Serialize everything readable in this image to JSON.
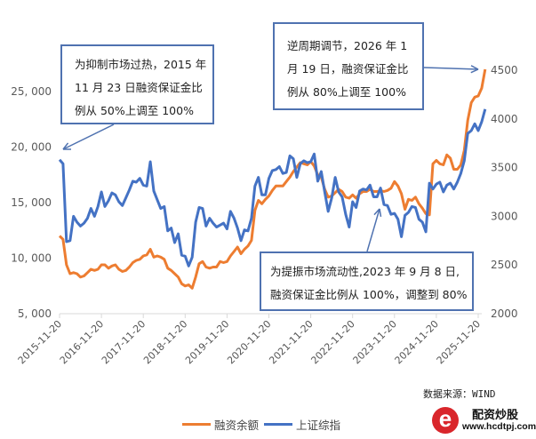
{
  "chart_data": {
    "type": "line",
    "title": "",
    "xlabel": "",
    "x_tick_labels": [
      "2015-11-20",
      "2016-11-20",
      "2017-11-20",
      "2018-11-20",
      "2019-11-20",
      "2020-11-20",
      "2021-11-20",
      "2022-11-20",
      "2023-11-20",
      "2024-11-20",
      "2025-11-20"
    ],
    "left_axis": {
      "ticks": [
        5000,
        10000,
        15000,
        20000,
        25000
      ],
      "tick_labels": [
        "5, 000",
        "10, 000",
        "15, 000",
        "20, 000",
        "25, 000"
      ],
      "range": [
        5000,
        25000
      ]
    },
    "right_axis": {
      "ticks": [
        2000,
        2500,
        3000,
        3500,
        4000,
        4500
      ],
      "tick_labels": [
        "2000",
        "2500",
        "3000",
        "3500",
        "4000",
        "4500"
      ],
      "range": [
        2000,
        4500
      ]
    },
    "grid": false,
    "legend_position": "bottom",
    "x_start": "2015-11",
    "series": [
      {
        "name": "融资余额",
        "axis": "left",
        "color": "#ed7d31",
        "values": [
          12000,
          11700,
          9400,
          8600,
          8700,
          8600,
          8300,
          8400,
          8700,
          9000,
          8900,
          9000,
          9400,
          9400,
          9100,
          9300,
          9400,
          9000,
          8800,
          8900,
          9200,
          9600,
          9800,
          9900,
          10200,
          10300,
          10800,
          10100,
          10200,
          10100,
          9900,
          9100,
          8900,
          8600,
          8300,
          7700,
          7500,
          7600,
          7300,
          8300,
          9500,
          9700,
          9200,
          9100,
          9200,
          9200,
          9700,
          9600,
          9700,
          10200,
          10600,
          11000,
          10400,
          10800,
          11100,
          11600,
          14300,
          15200,
          14900,
          15300,
          15600,
          16100,
          16500,
          16500,
          16500,
          16900,
          17300,
          17800,
          18200,
          18600,
          18500,
          18400,
          18700,
          18300,
          17500,
          17300,
          16200,
          15500,
          15600,
          15900,
          16200,
          16000,
          15500,
          15400,
          15700,
          15400,
          15800,
          16000,
          16000,
          16200,
          16000,
          16000,
          16100,
          16000,
          16100,
          16300,
          16900,
          16500,
          15800,
          14400,
          15300,
          15200,
          15500,
          14900,
          14500,
          14000,
          13900,
          18500,
          18800,
          18500,
          18400,
          19300,
          19000,
          18000,
          18000,
          18400,
          19700,
          22400,
          24000,
          24500,
          24600,
          25300,
          27000
        ]
      },
      {
        "name": "上证综指",
        "axis": "right",
        "color": "#4472c4",
        "values": [
          3580,
          3540,
          2740,
          2750,
          3000,
          2940,
          2900,
          2930,
          2980,
          3080,
          3000,
          3100,
          3250,
          3100,
          3160,
          3240,
          3220,
          3150,
          3110,
          3190,
          3270,
          3360,
          3350,
          3390,
          3320,
          3310,
          3560,
          3260,
          3170,
          3080,
          3100,
          2850,
          2880,
          2730,
          2820,
          2600,
          2590,
          2490,
          2580,
          2940,
          3090,
          3080,
          2900,
          2980,
          2930,
          2890,
          2910,
          2930,
          2870,
          3050,
          2980,
          2880,
          2750,
          2860,
          2850,
          2980,
          3310,
          3400,
          3220,
          3220,
          3390,
          3470,
          3480,
          3510,
          3440,
          3450,
          3620,
          3590,
          3400,
          3540,
          3570,
          3550,
          3560,
          3640,
          3360,
          3460,
          3250,
          3050,
          3190,
          3400,
          3250,
          3200,
          3020,
          2890,
          3150,
          3090,
          3260,
          3280,
          3270,
          3320,
          3200,
          3200,
          3290,
          3120,
          3110,
          3020,
          3030,
          2970,
          2790,
          3010,
          3040,
          3100,
          3090,
          2970,
          2940,
          2840,
          3340,
          3280,
          3330,
          3350,
          3250,
          3320,
          3340,
          3280,
          3350,
          3440,
          3570,
          3850,
          3880,
          3950,
          3880,
          3970,
          4100
        ]
      }
    ]
  },
  "annotations": [
    {
      "lines": [
        "为抑制市场过热，2015 年",
        "11 月 23 日融资保证金比",
        "例从 50%上调至 100%"
      ]
    },
    {
      "lines": [
        "逆周期调节，2026 年 1",
        "月 19 日，融资保证金比",
        "例从 80%上调至 100%"
      ]
    },
    {
      "lines": [
        "为提振市场流动性,2023 年 9 月 8 日,",
        "融资保证金比例从 100%，调整到 80%"
      ]
    }
  ],
  "source": "数据来源：WIND",
  "legend": [
    {
      "label": "融资余额",
      "color": "#ed7d31"
    },
    {
      "label": "上证综指",
      "color": "#4472c4"
    }
  ],
  "logo": {
    "name": "配资炒股",
    "url_text": "www.hcdtpj.com",
    "letter": "e"
  }
}
